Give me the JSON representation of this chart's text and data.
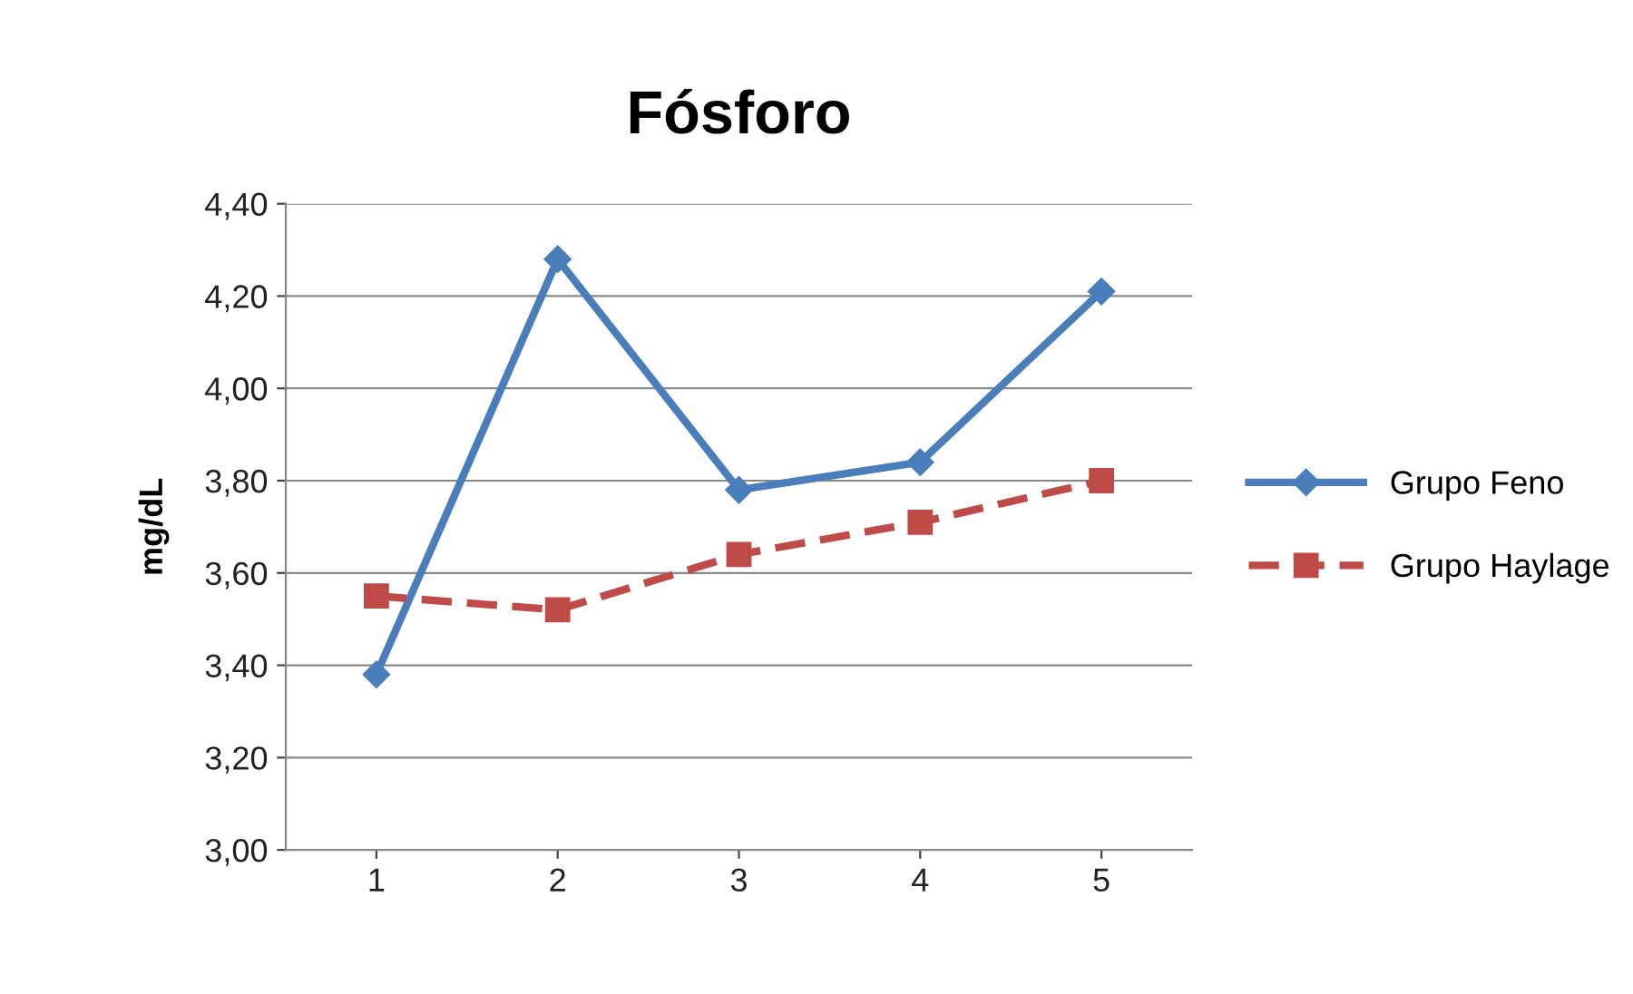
{
  "chart_data": {
    "type": "line",
    "title": "Fósforo",
    "ylabel": "mg/dL",
    "categories": [
      "1",
      "2",
      "3",
      "4",
      "5"
    ],
    "series": [
      {
        "name": "Grupo Feno",
        "color": "#4a7ebb",
        "values": [
          3.38,
          4.28,
          3.78,
          3.84,
          4.21
        ],
        "marker": "diamond",
        "line_style": "solid"
      },
      {
        "name": "Grupo Haylage",
        "color": "#be4b48",
        "values": [
          3.55,
          3.52,
          3.64,
          3.71,
          3.8
        ],
        "marker": "square",
        "line_style": "dashed"
      }
    ],
    "ylim": [
      3.0,
      4.4
    ],
    "yticks": [
      {
        "value": 3.0,
        "label": "3,00"
      },
      {
        "value": 3.2,
        "label": "3,20"
      },
      {
        "value": 3.4,
        "label": "3,40"
      },
      {
        "value": 3.6,
        "label": "3,60"
      },
      {
        "value": 3.8,
        "label": "3,80"
      },
      {
        "value": 4.0,
        "label": "4,00"
      },
      {
        "value": 4.2,
        "label": "4,20"
      },
      {
        "value": 4.4,
        "label": "4,40"
      }
    ],
    "grid": "y",
    "legend": "right"
  }
}
